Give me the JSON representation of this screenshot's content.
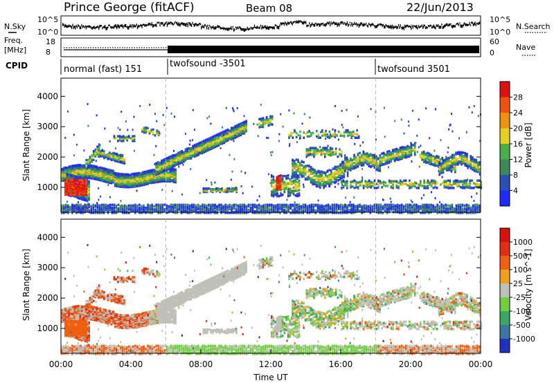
{
  "header": {
    "station": "Prince George (fitACF)",
    "beam": "Beam 08",
    "date": "22/Jun/2013"
  },
  "left_labels": {
    "nsky": "N.Sky",
    "freq_line1": "Freq.",
    "freq_line2": "[MHz]",
    "cpid": "CPID"
  },
  "right_labels": {
    "nsearch": "N.Search",
    "nave": "Nave"
  },
  "top_strip": {
    "noise_left_ticks": [
      "10^5",
      "10^0"
    ],
    "noise_right_ticks": [
      "10^5",
      "10^0"
    ],
    "freq_left_ticks": [
      "18",
      "8"
    ],
    "nave_right_ticks": [
      "60",
      "0"
    ]
  },
  "cpid_segments": [
    {
      "label": "normal (fast) 151",
      "start_hour": 0
    },
    {
      "label": "twofsound -3501",
      "start_hour": 6
    },
    {
      "label": "twofsound 3501",
      "start_hour": 18
    }
  ],
  "x_axis": {
    "label": "Time UT",
    "ticks": [
      "00:00",
      "04:00",
      "08:00",
      "12:00",
      "16:00",
      "20:00",
      "00:00"
    ]
  },
  "chart_data": [
    {
      "type": "heatmap",
      "title": "",
      "xlabel": "Time UT",
      "ylabel": "Slant Range [km]",
      "x_range_hours": [
        0,
        24
      ],
      "ylim": [
        180,
        4600
      ],
      "yticks": [
        "1000",
        "2000",
        "3000",
        "4000"
      ],
      "colorbar": {
        "label": "Power [dB]",
        "ticks": [
          "4",
          "8",
          "12",
          "16",
          "20",
          "24",
          "28"
        ],
        "colors": [
          "#1f28ff",
          "#2a4fb8",
          "#3c8a5c",
          "#49b04a",
          "#e5cf20",
          "#f09010",
          "#f05010",
          "#e01010"
        ]
      },
      "features": [
        {
          "name": "main band",
          "start_hour": 0,
          "end_hour": 6.5,
          "range_km": [
            1200,
            1700
          ]
        },
        {
          "name": "rising band",
          "start_hour": 5.5,
          "end_hour": 10.5,
          "range_km": [
            1700,
            3000
          ]
        },
        {
          "name": "near-range echoes",
          "start_hour": 0,
          "end_hour": 24,
          "range_km": [
            200,
            450
          ]
        },
        {
          "name": "strong echo",
          "start_hour": 12.3,
          "end_hour": 12.7,
          "range_km": [
            900,
            1500
          ]
        }
      ]
    },
    {
      "type": "heatmap",
      "title": "",
      "xlabel": "Time UT",
      "ylabel": "Slant Range [km]",
      "x_range_hours": [
        0,
        24
      ],
      "ylim": [
        180,
        4600
      ],
      "yticks": [
        "1000",
        "2000",
        "3000",
        "4000"
      ],
      "colorbar": {
        "label": "Velocity [m s^-1]",
        "ticks": [
          "1000",
          "500",
          "100",
          "25",
          "-25",
          "-100",
          "-500",
          "-1000"
        ],
        "colors": [
          "#2030c0",
          "#3a78a0",
          "#3aa860",
          "#70d040",
          "#c0c0b8",
          "#f0a020",
          "#f06010",
          "#e03010",
          "#d81010"
        ]
      }
    }
  ],
  "colors": {
    "gridline": "#bbbbbb",
    "ground_scatter": "#c0c0b8"
  }
}
